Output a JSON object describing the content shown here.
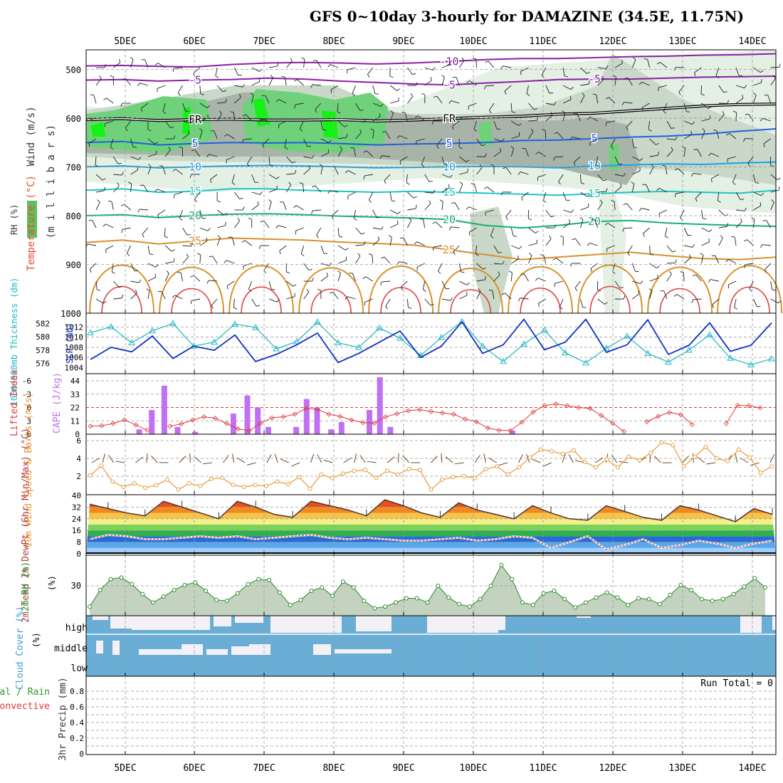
{
  "title": "GFS 0~10day 3-hourly for DAMAZINE (34.5E, 11.75N)",
  "date_labels": [
    "5DEC",
    "6DEC",
    "7DEC",
    "8DEC",
    "9DEC",
    "10DEC",
    "11DEC",
    "12DEC",
    "13DEC",
    "14DEC"
  ],
  "chart_data": [
    {
      "id": "upper",
      "type": "heatmap",
      "ylabel_parts": [
        "RH (%)",
        "Temperature (°C)",
        "Wind (m/s)"
      ],
      "ylabel_unit": "(m i l l i b a r s)",
      "y_ticks": [
        500,
        600,
        700,
        800,
        900,
        1000
      ],
      "ylim": [
        1000,
        460
      ],
      "contours": [
        {
          "label": "-10",
          "pressure": [
            493,
            492,
            494,
            495,
            490,
            487,
            486,
            487,
            489,
            487,
            484,
            480,
            478,
            478,
            476,
            474,
            473,
            471,
            470,
            468
          ],
          "color": "#8b1fa8"
        },
        {
          "label": "-5",
          "pressure": [
            522,
            521,
            524,
            522,
            521,
            518,
            520,
            524,
            527,
            530,
            532,
            528,
            525,
            521,
            520,
            520,
            518,
            516,
            515,
            514
          ],
          "color": "#8b1fa8"
        },
        {
          "label": "FR",
          "pressure": [
            603,
            601,
            605,
            603,
            602,
            604,
            604,
            603,
            606,
            604,
            601,
            598,
            596,
            592,
            590,
            585,
            580,
            575,
            572,
            571
          ],
          "color": "#000000"
        },
        {
          "label": "5",
          "pressure": [
            650,
            648,
            655,
            652,
            650,
            651,
            650,
            652,
            655,
            653,
            652,
            650,
            646,
            645,
            642,
            639,
            637,
            633,
            627,
            622
          ],
          "color": "#1f5fe0"
        },
        {
          "label": "10",
          "pressure": [
            700,
            698,
            702,
            700,
            698,
            697,
            698,
            700,
            702,
            701,
            700,
            699,
            700,
            702,
            698,
            696,
            694,
            695,
            692,
            690
          ],
          "color": "#1aa3e8"
        },
        {
          "label": "15",
          "pressure": [
            748,
            745,
            752,
            750,
            745,
            745,
            748,
            750,
            752,
            750,
            752,
            754,
            756,
            758,
            755,
            752,
            750,
            752,
            754,
            748
          ],
          "color": "#1fc4c4"
        },
        {
          "label": "20",
          "pressure": [
            800,
            798,
            804,
            800,
            797,
            796,
            798,
            801,
            803,
            805,
            808,
            820,
            825,
            820,
            812,
            810,
            815,
            818,
            820,
            822
          ],
          "color": "#18b070"
        },
        {
          "label": "25",
          "pressure": [
            855,
            850,
            858,
            852,
            846,
            848,
            850,
            854,
            857,
            860,
            870,
            880,
            890,
            885,
            880,
            875,
            882,
            888,
            890,
            885
          ],
          "color": "#d8912a"
        }
      ]
    },
    {
      "id": "thickness-slp",
      "type": "line",
      "series": [
        {
          "name": "1000~500mb Thickness (dm)",
          "color": "#20b8c0",
          "values": [
            580.6,
            581.5,
            579.1,
            580.9,
            582.0,
            578.6,
            579.2,
            581.9,
            581.4,
            578.2,
            579.3,
            582.2,
            579.1,
            578.4,
            581.3,
            579.8,
            577.2,
            579.9,
            582.3,
            578.6,
            576.3,
            578.9,
            581.0,
            577.6,
            576.1,
            578.3,
            580.1,
            577.5,
            576.2,
            578.0,
            580.3,
            576.8,
            575.8,
            576.7
          ]
        },
        {
          "name": "SLP (mb)",
          "color": "#1030c0",
          "values": [
            1005.6,
            1008.0,
            1007.1,
            1010.2,
            1005.8,
            1008.2,
            1007.4,
            1010.4,
            1005.2,
            1006.6,
            1008.5,
            1010.8,
            1005.0,
            1006.8,
            1009.0,
            1011.2,
            1006.0,
            1008.2,
            1013.0,
            1006.8,
            1008.5,
            1013.5,
            1007.5,
            1009.0,
            1013.5,
            1007.0,
            1008.5,
            1013.4,
            1006.6,
            1008.4,
            1012.8,
            1007.2,
            1008.4,
            1012.8
          ]
        }
      ],
      "left_ticks": [
        576,
        578,
        580,
        582
      ],
      "right_ticks": [
        1004,
        1006,
        1008,
        1010,
        1012
      ],
      "ylabel_left": "1000~500mb Thickness (dm)",
      "ylabel_right": "SLP (mb)"
    },
    {
      "id": "cape-li",
      "type": "bar",
      "series": [
        {
          "name": "CAPE (J/kg)",
          "color": "#c070f0",
          "bars": [
            [
              0.2,
              4
            ],
            [
              0.38,
              20
            ],
            [
              0.56,
              40
            ],
            [
              0.75,
              6
            ],
            [
              1.0,
              2
            ],
            [
              1.55,
              17
            ],
            [
              1.75,
              32
            ],
            [
              1.9,
              22
            ],
            [
              2.05,
              6
            ],
            [
              2.45,
              6
            ],
            [
              2.6,
              29
            ],
            [
              2.75,
              22
            ],
            [
              2.95,
              4
            ],
            [
              3.1,
              10
            ],
            [
              3.5,
              20
            ],
            [
              3.65,
              47
            ],
            [
              3.8,
              6
            ],
            [
              5.55,
              3
            ]
          ]
        },
        {
          "name": "Lifted Index",
          "color": "#e03838",
          "values": [
            4.2,
            4.1,
            3.6,
            2.8,
            3.9,
            5.1,
            5.6,
            4.2,
            3.7,
            2.8,
            2.1,
            2.4,
            3.6,
            4.8,
            5.2,
            3.5,
            2.3,
            2.1,
            1.5,
            0.2,
            0.4,
            1.5,
            2.0,
            2.8,
            3.4,
            3.5,
            2.1,
            1.4,
            0.7,
            0.5,
            0.9,
            1.2,
            1.5,
            2.6,
            3.2,
            4.6,
            5.1,
            5.2,
            3.3,
            1.0,
            -0.4,
            -0.8,
            -0.4,
            0.0,
            0.2,
            1.8,
            3.5,
            5.4,
            6.2,
            3.2,
            2.0,
            1.1,
            1.6,
            3.8,
            5.9,
            6.0,
            3.6,
            -0.5,
            -0.4,
            0.1,
            5.9
          ]
        }
      ],
      "li_ticks": [
        "-6",
        "-3",
        "0",
        "3",
        "6"
      ],
      "cape_ticks": [
        "44",
        "33",
        "22",
        "11",
        "0"
      ],
      "ylabel_left": "Lifted Index",
      "ylabel_right": "CAPE (J/kg)"
    },
    {
      "id": "wind10m",
      "type": "line",
      "series": [
        {
          "name": "10m Wind Speed (m/s)",
          "color": "#e89a3a",
          "values": [
            2.1,
            3.2,
            1.4,
            0.8,
            1.2,
            0.7,
            1.0,
            1.6,
            0.5,
            1.2,
            0.9,
            1.7,
            1.8,
            1.0,
            0.8,
            1.0,
            0.9,
            1.4,
            1.1,
            1.9,
            0.6,
            2.2,
            1.8,
            2.3,
            2.6,
            2.7,
            1.8,
            2.6,
            2.2,
            2.8,
            2.7,
            0.5,
            1.6,
            1.9,
            2.0,
            1.8,
            2.8,
            3.1,
            2.2,
            3.0,
            4.1,
            5.0,
            4.8,
            4.5,
            4.9,
            3.6,
            3.0,
            3.9,
            3.0,
            4.2,
            3.8,
            4.6,
            5.8,
            5.5,
            3.1,
            4.2,
            5.3,
            4.0,
            3.7,
            5.0,
            4.1,
            2.4,
            3.1
          ]
        }
      ],
      "y_ticks": [
        2,
        4,
        6
      ],
      "ylabel": "10m Wind Speed & Barbs (m/s)"
    },
    {
      "id": "temp2m",
      "type": "area",
      "series": [
        {
          "name": "2m Temp (°C)",
          "color": "#553333",
          "values": [
            34,
            31,
            28,
            26,
            36,
            32,
            28,
            24,
            36,
            32,
            27,
            25,
            36,
            33,
            30,
            26,
            37,
            33,
            28,
            25,
            35,
            30,
            27,
            24,
            33,
            28,
            24,
            23,
            33,
            29,
            25,
            23,
            33,
            30,
            26,
            22,
            31,
            27
          ]
        },
        {
          "name": "2m DewPt (°C)",
          "color": "#c06058",
          "values": [
            10,
            13,
            12,
            10,
            10,
            11,
            12,
            11,
            12,
            10,
            11,
            12,
            13,
            11,
            10,
            11,
            10,
            9,
            9,
            10,
            11,
            9,
            10,
            12,
            11,
            4,
            8,
            12,
            3,
            6,
            10,
            4,
            6,
            9,
            7,
            4,
            7,
            9
          ]
        }
      ],
      "y_ticks": [
        0,
        8,
        16,
        24,
        32,
        40
      ],
      "ylabel": "2m Temp 2m DewPt (6hr Min/Max) (°C)"
    },
    {
      "id": "rh2m",
      "type": "area",
      "series": [
        {
          "name": "2m RH (%)",
          "color": "#2a8a2a",
          "values": [
            5,
            25,
            38,
            40,
            32,
            20,
            10,
            17,
            25,
            31,
            34,
            24,
            13,
            12,
            21,
            32,
            38,
            37,
            22,
            7,
            13,
            24,
            28,
            18,
            35,
            28,
            12,
            3,
            5,
            10,
            15,
            15,
            10,
            30,
            16,
            8,
            5,
            14,
            30,
            55,
            38,
            10,
            7,
            21,
            24,
            14,
            4,
            10,
            16,
            22,
            16,
            7,
            15,
            14,
            8,
            19,
            31,
            25,
            14,
            12,
            14,
            20,
            29,
            39,
            28
          ]
        }
      ],
      "y_ticks": [
        30
      ],
      "ylabel": "2m RH (%)"
    },
    {
      "id": "cloud",
      "type": "heatmap",
      "rows": [
        "high",
        "middle",
        "low"
      ],
      "ylabel": "Cloud Cover (%)",
      "colors": {
        "cloud": "#6aaed6",
        "clear": "#f3f1f5"
      }
    },
    {
      "id": "precip",
      "type": "bar",
      "series": [
        {
          "name": "3hr Precip (mm)",
          "values": []
        }
      ],
      "y_ticks": [
        "0",
        "0.2",
        "0.4",
        "0.6",
        "0.8"
      ],
      "ylabel": "3hr Precip (mm)",
      "legend_lines": [
        "Total / Rain",
        "Convective"
      ],
      "run_total": "Run Total = 0"
    }
  ],
  "colors": {
    "rh_light": "#e3f0e3",
    "rh_mid": "#c9d8c9",
    "rh_dark": "#a8b4a8",
    "rh_green": "#6fd27a",
    "rh_bright": "#14f214",
    "thickness": "#20b8c0",
    "slp": "#1030c0",
    "cape": "#c070f0",
    "li": "#e03838",
    "wind": "#e89a3a",
    "rh2m_fill": "#c3d3c0",
    "rh2m_line": "#2a8a2a",
    "cloud": "#6aaed6"
  }
}
